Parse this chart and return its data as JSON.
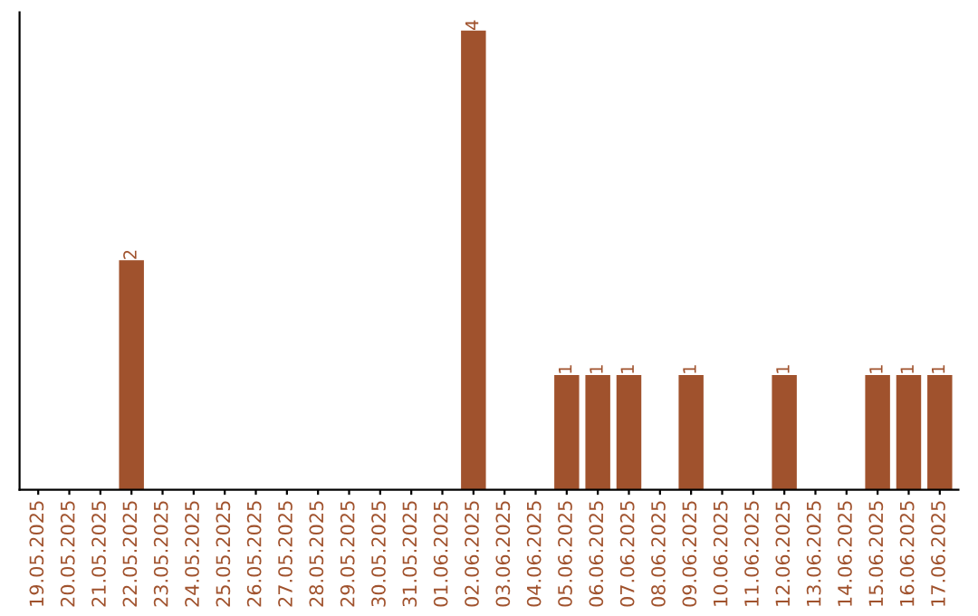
{
  "chart_data": {
    "type": "bar",
    "categories": [
      "19.05.2025",
      "20.05.2025",
      "21.05.2025",
      "22.05.2025",
      "23.05.2025",
      "24.05.2025",
      "25.05.2025",
      "26.05.2025",
      "27.05.2025",
      "28.05.2025",
      "29.05.2025",
      "30.05.2025",
      "31.05.2025",
      "01.06.2025",
      "02.06.2025",
      "03.06.2025",
      "04.06.2025",
      "05.06.2025",
      "06.06.2025",
      "07.06.2025",
      "08.06.2025",
      "09.06.2025",
      "10.06.2025",
      "11.06.2025",
      "12.06.2025",
      "13.06.2025",
      "14.06.2025",
      "15.06.2025",
      "16.06.2025",
      "17.06.2025"
    ],
    "values": [
      0,
      0,
      0,
      2,
      0,
      0,
      0,
      0,
      0,
      0,
      0,
      0,
      0,
      0,
      4,
      0,
      0,
      1,
      1,
      1,
      0,
      1,
      0,
      0,
      1,
      0,
      0,
      1,
      1,
      1
    ],
    "value_labels": [
      null,
      null,
      null,
      "2",
      null,
      null,
      null,
      null,
      null,
      null,
      null,
      null,
      null,
      null,
      "4",
      null,
      null,
      "1",
      "1",
      "1",
      null,
      "1",
      null,
      null,
      "1",
      null,
      null,
      "1",
      "1",
      "1"
    ],
    "color": "#a0522d",
    "grid": false,
    "legend": false
  }
}
